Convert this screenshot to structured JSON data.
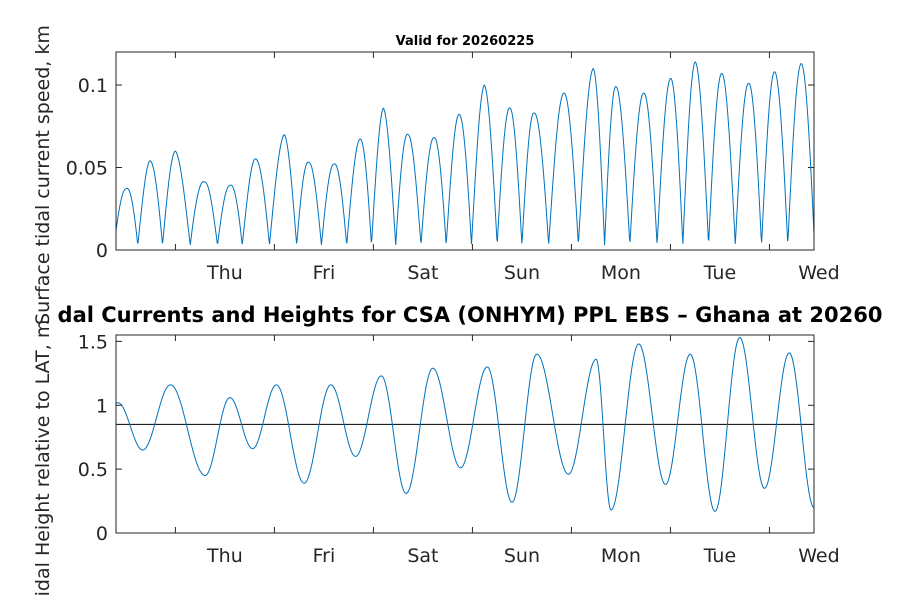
{
  "chart_data": [
    {
      "type": "line",
      "title": "Valid for 20260225",
      "ylabel": "Surface tidal current speed, km",
      "ylim": [
        0,
        0.12
      ],
      "yticks": [
        0,
        0.05,
        0.1
      ],
      "ytick_labels": [
        "0",
        "0.05",
        "0.1"
      ],
      "x_tick_labels": [
        "Thu",
        "Fri",
        "Sat",
        "Sun",
        "Mon",
        "Tue",
        "Wed"
      ],
      "x_unit": "day",
      "xlim": [
        -0.6,
        6.45
      ],
      "color": "#0072BD",
      "series": [
        {
          "peaks_x": [
            -0.5,
            -0.26,
            0.0,
            0.3,
            0.55,
            0.8,
            1.1,
            1.35,
            1.6,
            1.86,
            2.1,
            2.35,
            2.61,
            2.86,
            3.12,
            3.38,
            3.62,
            3.92,
            4.22,
            4.45,
            4.73,
            5.0,
            5.25,
            5.52,
            5.79,
            6.05,
            6.32
          ],
          "peaks_y": [
            0.037,
            0.054,
            0.06,
            0.041,
            0.039,
            0.055,
            0.07,
            0.053,
            0.052,
            0.067,
            0.086,
            0.07,
            0.068,
            0.082,
            0.1,
            0.086,
            0.083,
            0.095,
            0.11,
            0.099,
            0.095,
            0.104,
            0.114,
            0.107,
            0.101,
            0.108,
            0.113
          ],
          "min_value": 0.003
        }
      ]
    },
    {
      "type": "line",
      "title": "dal Currents and Heights for CSA (ONHYM) PPL EBS  – Ghana at 20260",
      "ylabel": "idal Height relative to LAT, m",
      "ylim": [
        0,
        1.55
      ],
      "yticks": [
        0,
        0.5,
        1,
        1.5
      ],
      "ytick_labels": [
        "0",
        "0.5",
        "1",
        "1.5"
      ],
      "x_tick_labels": [
        "Thu",
        "Fri",
        "Sat",
        "Sun",
        "Mon",
        "Tue",
        "Wed"
      ],
      "x_unit": "day",
      "xlim": [
        -0.6,
        6.45
      ],
      "color": "#0072BD",
      "reference_line": 0.85,
      "series": [
        {
          "extrema_x": [
            -0.58,
            -0.33,
            -0.05,
            0.3,
            0.55,
            0.78,
            1.02,
            1.3,
            1.57,
            1.82,
            2.08,
            2.33,
            2.6,
            2.88,
            3.15,
            3.4,
            3.65,
            3.97,
            4.25,
            4.4,
            4.68,
            4.95,
            5.2,
            5.45,
            5.7,
            5.95,
            6.2,
            6.45
          ],
          "extrema_y": [
            1.02,
            0.65,
            1.16,
            0.45,
            1.06,
            0.66,
            1.16,
            0.39,
            1.16,
            0.6,
            1.23,
            0.31,
            1.29,
            0.51,
            1.3,
            0.24,
            1.4,
            0.46,
            1.36,
            0.18,
            1.48,
            0.38,
            1.4,
            0.17,
            1.53,
            0.35,
            1.41,
            0.2
          ]
        }
      ]
    }
  ]
}
